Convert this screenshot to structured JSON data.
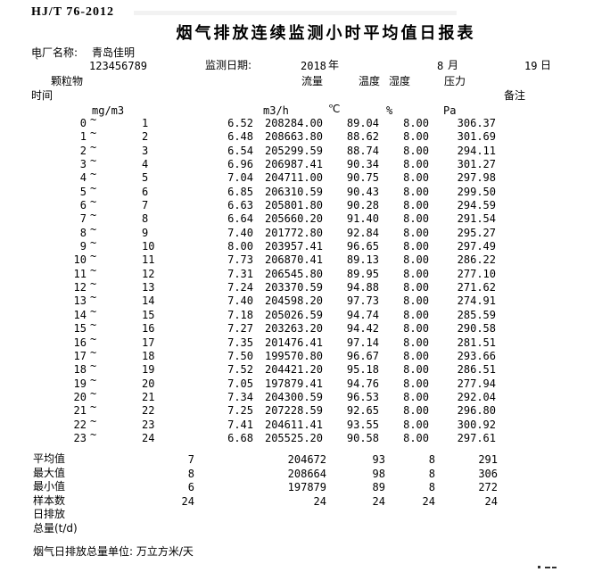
{
  "doc": {
    "standard": "HJ/T 76-2012",
    "title": "烟气排放连续监测小时平均值日报表",
    "plant_label": "电厂名称:",
    "plant_name": "青岛佳明",
    "tick_mark": "`",
    "plant_code": "123456789",
    "date_label": "监测日期:",
    "year_value": "2018",
    "year_unit": "年",
    "month_value": "8",
    "month_unit": "月",
    "day_value": "19",
    "day_unit": "日",
    "range_separator": "~"
  },
  "columns": {
    "time": "时间",
    "pm": "颗粒物",
    "flow": "流量",
    "temp": "温度",
    "hum": "湿度",
    "press": "压力",
    "remark": "备注"
  },
  "units": {
    "pm": "mg/m3",
    "flow": "m3/h",
    "temp": "℃",
    "hum": "%",
    "press": "Pa"
  },
  "rows": [
    {
      "from": "0",
      "to": "1",
      "pm": "6.52",
      "flow": "208284.00",
      "temp": "89.04",
      "hum": "8.00",
      "press": "306.37"
    },
    {
      "from": "1",
      "to": "2",
      "pm": "6.48",
      "flow": "208663.80",
      "temp": "88.62",
      "hum": "8.00",
      "press": "301.69"
    },
    {
      "from": "2",
      "to": "3",
      "pm": "6.54",
      "flow": "205299.59",
      "temp": "88.74",
      "hum": "8.00",
      "press": "294.11"
    },
    {
      "from": "3",
      "to": "4",
      "pm": "6.96",
      "flow": "206987.41",
      "temp": "90.34",
      "hum": "8.00",
      "press": "301.27"
    },
    {
      "from": "4",
      "to": "5",
      "pm": "7.04",
      "flow": "204711.00",
      "temp": "90.75",
      "hum": "8.00",
      "press": "297.98"
    },
    {
      "from": "5",
      "to": "6",
      "pm": "6.85",
      "flow": "206310.59",
      "temp": "90.43",
      "hum": "8.00",
      "press": "299.50"
    },
    {
      "from": "6",
      "to": "7",
      "pm": "6.63",
      "flow": "205801.80",
      "temp": "90.28",
      "hum": "8.00",
      "press": "294.59"
    },
    {
      "from": "7",
      "to": "8",
      "pm": "6.64",
      "flow": "205660.20",
      "temp": "91.40",
      "hum": "8.00",
      "press": "291.54"
    },
    {
      "from": "8",
      "to": "9",
      "pm": "7.40",
      "flow": "201772.80",
      "temp": "92.84",
      "hum": "8.00",
      "press": "295.27"
    },
    {
      "from": "9",
      "to": "10",
      "pm": "8.00",
      "flow": "203957.41",
      "temp": "96.65",
      "hum": "8.00",
      "press": "297.49"
    },
    {
      "from": "10",
      "to": "11",
      "pm": "7.73",
      "flow": "206870.41",
      "temp": "89.13",
      "hum": "8.00",
      "press": "286.22"
    },
    {
      "from": "11",
      "to": "12",
      "pm": "7.31",
      "flow": "206545.80",
      "temp": "89.95",
      "hum": "8.00",
      "press": "277.10"
    },
    {
      "from": "12",
      "to": "13",
      "pm": "7.24",
      "flow": "203370.59",
      "temp": "94.88",
      "hum": "8.00",
      "press": "271.62"
    },
    {
      "from": "13",
      "to": "14",
      "pm": "7.40",
      "flow": "204598.20",
      "temp": "97.73",
      "hum": "8.00",
      "press": "274.91"
    },
    {
      "from": "14",
      "to": "15",
      "pm": "7.18",
      "flow": "205026.59",
      "temp": "94.74",
      "hum": "8.00",
      "press": "285.59"
    },
    {
      "from": "15",
      "to": "16",
      "pm": "7.27",
      "flow": "203263.20",
      "temp": "94.42",
      "hum": "8.00",
      "press": "290.58"
    },
    {
      "from": "16",
      "to": "17",
      "pm": "7.35",
      "flow": "201476.41",
      "temp": "97.14",
      "hum": "8.00",
      "press": "281.51"
    },
    {
      "from": "17",
      "to": "18",
      "pm": "7.50",
      "flow": "199570.80",
      "temp": "96.67",
      "hum": "8.00",
      "press": "293.66"
    },
    {
      "from": "18",
      "to": "19",
      "pm": "7.52",
      "flow": "204421.20",
      "temp": "95.18",
      "hum": "8.00",
      "press": "286.51"
    },
    {
      "from": "19",
      "to": "20",
      "pm": "7.05",
      "flow": "197879.41",
      "temp": "94.76",
      "hum": "8.00",
      "press": "277.94"
    },
    {
      "from": "20",
      "to": "21",
      "pm": "7.34",
      "flow": "204300.59",
      "temp": "96.53",
      "hum": "8.00",
      "press": "292.04"
    },
    {
      "from": "21",
      "to": "22",
      "pm": "7.25",
      "flow": "207228.59",
      "temp": "92.65",
      "hum": "8.00",
      "press": "296.80"
    },
    {
      "from": "22",
      "to": "23",
      "pm": "7.41",
      "flow": "204611.41",
      "temp": "93.55",
      "hum": "8.00",
      "press": "300.92"
    },
    {
      "from": "23",
      "to": "24",
      "pm": "6.68",
      "flow": "205525.20",
      "temp": "90.58",
      "hum": "8.00",
      "press": "297.61"
    }
  ],
  "summary": [
    {
      "label": "平均值",
      "pm": "7",
      "flow": "204672",
      "temp": "93",
      "hum": "8",
      "press": "291"
    },
    {
      "label": "最大值",
      "pm": "8",
      "flow": "208664",
      "temp": "98",
      "hum": "8",
      "press": "306"
    },
    {
      "label": "最小值",
      "pm": "6",
      "flow": "197879",
      "temp": "89",
      "hum": "8",
      "press": "272"
    },
    {
      "label": "样本数",
      "pm": "24",
      "flow": "24",
      "temp": "24",
      "hum": "24",
      "press": "24"
    },
    {
      "label": "日排放",
      "pm": "",
      "flow": "",
      "temp": "",
      "hum": "",
      "press": ""
    },
    {
      "label": "总量(t/d)",
      "pm": "",
      "flow": "",
      "temp": "",
      "hum": "",
      "press": ""
    }
  ],
  "footer": {
    "note": "烟气日排放总量单位: 万立方米/天"
  }
}
